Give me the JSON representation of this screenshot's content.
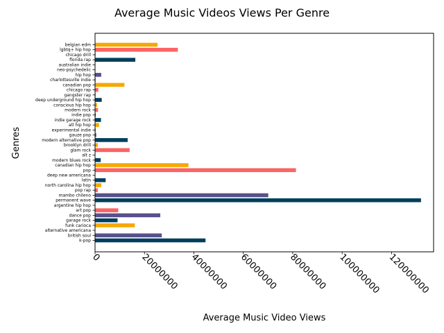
{
  "chart_data": {
    "type": "bar",
    "orientation": "horizontal",
    "title": "Average Music Videos Views Per Genre",
    "xlabel": "Average Music Video Views",
    "ylabel": "Genres",
    "xlim": [
      0,
      137000000
    ],
    "xticks": [
      0,
      20000000,
      40000000,
      60000000,
      80000000,
      100000000,
      120000000
    ],
    "xtick_labels": [
      "0",
      "20000000",
      "40000000",
      "60000000",
      "80000000",
      "100000000",
      "120000000"
    ],
    "grid": false,
    "palette": [
      "#f6a800",
      "#fa6464",
      "#58508d",
      "#003f5c"
    ],
    "categories": [
      "belgian edm",
      "lgbtq+ hip hop",
      "chicago drill",
      "florida rap",
      "australian indie",
      "neo-psychedelic",
      "hip hop",
      "charlottesville indie",
      "canadian pop",
      "chicago rap",
      "gangster rap",
      "deep underground hip hop",
      "conscious hip hop",
      "modern rock",
      "indie pop",
      "indie garage rock",
      "atl hip hop",
      "experimental indie",
      "gauze pop",
      "modern alternative pop",
      "brooklyn drill",
      "glam rock",
      "alt z",
      "modern blues rock",
      "canadian hip hop",
      "pop",
      "deep new americana",
      "latin",
      "north carolina hip hop",
      "pop rap",
      "mambo chileno",
      "permanent wave",
      "argentine hip hop",
      "art pop",
      "dance pop",
      "garage rock",
      "funk carioca",
      "alternative americana",
      "british soul",
      "k-pop"
    ],
    "values": [
      25300000,
      33500000,
      200000,
      16300000,
      150000,
      150000,
      2500000,
      200000,
      11900000,
      1300000,
      200000,
      2700000,
      800000,
      1200000,
      300000,
      2400000,
      1600000,
      300000,
      500000,
      13200000,
      1100000,
      14000000,
      100000,
      2300000,
      37800000,
      81300000,
      100000,
      4300000,
      2500000,
      1100000,
      70100000,
      131900000,
      100000,
      9400000,
      26400000,
      9100000,
      16100000,
      100000,
      27000000,
      44700000
    ]
  }
}
